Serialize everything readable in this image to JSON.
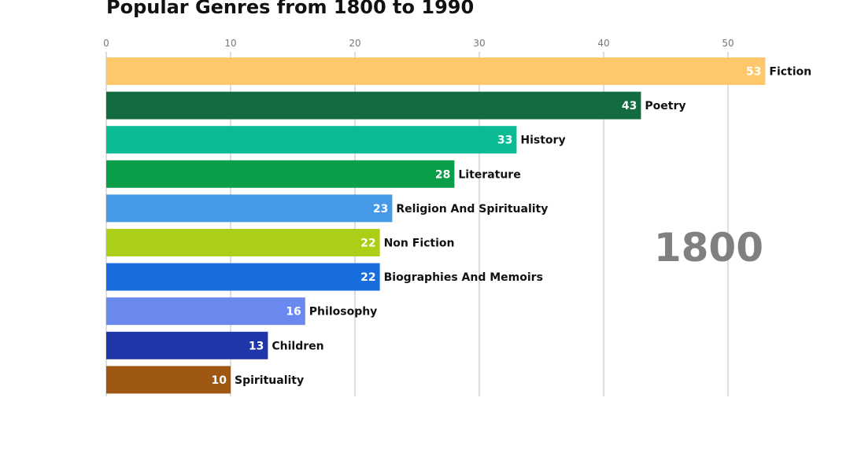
{
  "chart_data": {
    "type": "bar",
    "orientation": "horizontal",
    "title": "Popular Genres from 1800 to 1990",
    "year": "1800",
    "xlim": [
      0,
      55
    ],
    "ticks": [
      0,
      10,
      20,
      30,
      40,
      50
    ],
    "tick_labels": [
      "0",
      "10",
      "20",
      "30",
      "40",
      "50"
    ],
    "grid": true,
    "categories": [
      "Fiction",
      "Poetry",
      "History",
      "Literature",
      "Religion And Spirituality",
      "Non Fiction",
      "Biographies And Memoirs",
      "Philosophy",
      "Children",
      "Spirituality"
    ],
    "values": [
      53,
      43,
      33,
      28,
      23,
      22,
      22,
      16,
      13,
      10
    ],
    "value_labels": [
      "53",
      "43",
      "33",
      "28",
      "23",
      "22",
      "22",
      "16",
      "13",
      "10"
    ],
    "colors": [
      "#FEC76A",
      "#136C3F",
      "#0ABB93",
      "#099E47",
      "#4699E6",
      "#ABCE16",
      "#186EDF",
      "#6A89EE",
      "#1E36A8",
      "#9F5714"
    ]
  }
}
